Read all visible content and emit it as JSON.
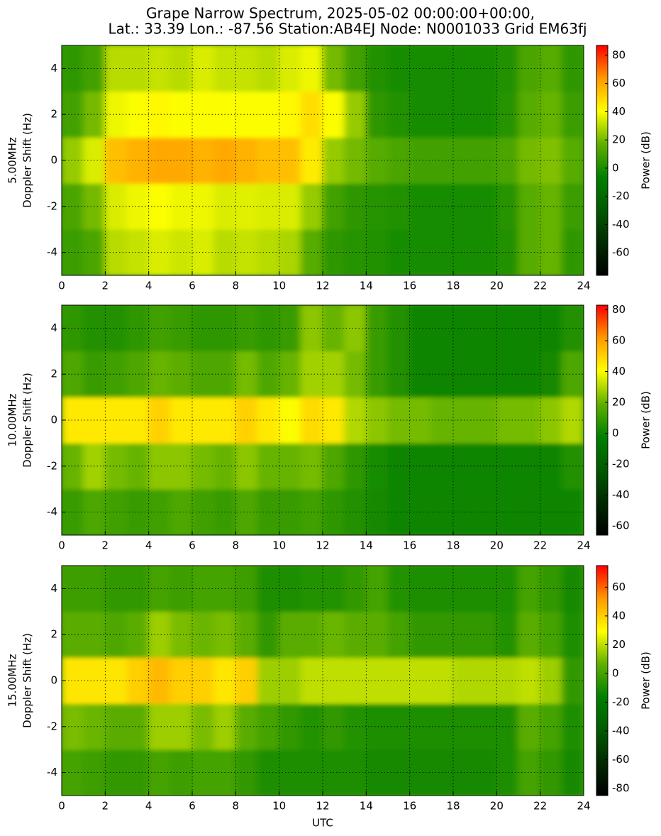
{
  "title": [
    "Grape Narrow Spectrum, 2025-05-02 00:00:00+00:00,",
    "Lat.: 33.39 Lon.: -87.56 Station:AB4EJ Node: N0001033 Grid EM63fj"
  ],
  "chart_data": [
    {
      "type": "heatmap",
      "ylabel": [
        "5.00MHz",
        "Doppler Shift (Hz)"
      ],
      "x": [
        0,
        1,
        2,
        3,
        4,
        5,
        6,
        7,
        8,
        9,
        10,
        11,
        12,
        13,
        14,
        15,
        16,
        17,
        18,
        19,
        20,
        21,
        22,
        23,
        24
      ],
      "y": [
        -5,
        -3,
        -1,
        1,
        3,
        5
      ],
      "values": [
        [
          8,
          12,
          30,
          32,
          35,
          33,
          35,
          30,
          32,
          30,
          28,
          15,
          5,
          3,
          2,
          0,
          0,
          0,
          0,
          0,
          2,
          15,
          18,
          5
        ],
        [
          12,
          20,
          35,
          38,
          40,
          38,
          38,
          35,
          36,
          35,
          35,
          25,
          10,
          5,
          3,
          2,
          0,
          0,
          0,
          0,
          3,
          15,
          18,
          8
        ],
        [
          25,
          35,
          55,
          58,
          60,
          60,
          58,
          60,
          58,
          55,
          55,
          45,
          25,
          20,
          15,
          12,
          10,
          10,
          10,
          10,
          12,
          20,
          22,
          15
        ],
        [
          10,
          20,
          38,
          40,
          42,
          40,
          40,
          40,
          40,
          40,
          42,
          48,
          40,
          25,
          5,
          2,
          0,
          0,
          0,
          0,
          3,
          15,
          18,
          8
        ],
        [
          5,
          10,
          30,
          30,
          32,
          30,
          35,
          32,
          32,
          30,
          35,
          38,
          20,
          10,
          2,
          0,
          0,
          0,
          0,
          0,
          2,
          12,
          15,
          5
        ]
      ],
      "xlim": [
        0,
        24
      ],
      "xticks": [
        0,
        2,
        4,
        6,
        8,
        10,
        12,
        14,
        16,
        18,
        20,
        22,
        24
      ],
      "ylim": [
        -5,
        5
      ],
      "yticks": [
        -4,
        -2,
        0,
        2,
        4
      ],
      "grid": true,
      "colorbar": {
        "label": "Power (dB)",
        "lim": [
          -76,
          87
        ],
        "ticks": [
          -60,
          -40,
          -20,
          0,
          20,
          40,
          60,
          80
        ]
      },
      "cmap": [
        "#000000",
        "#002a00",
        "#005a00",
        "#008000",
        "#60b000",
        "#ffff00",
        "#ff9900",
        "#ff0000"
      ]
    },
    {
      "type": "heatmap",
      "ylabel": [
        "10.00MHz",
        "Doppler Shift (Hz)"
      ],
      "x": [
        0,
        1,
        2,
        3,
        4,
        5,
        6,
        7,
        8,
        9,
        10,
        11,
        12,
        13,
        14,
        15,
        16,
        17,
        18,
        19,
        20,
        21,
        22,
        23,
        24
      ],
      "y": [
        -5,
        -3,
        -1,
        1,
        3,
        5
      ],
      "values": [
        [
          10,
          15,
          12,
          10,
          12,
          15,
          12,
          10,
          15,
          10,
          10,
          12,
          8,
          5,
          2,
          0,
          0,
          0,
          0,
          0,
          0,
          0,
          0,
          0
        ],
        [
          20,
          28,
          22,
          20,
          25,
          25,
          22,
          20,
          25,
          20,
          20,
          22,
          15,
          8,
          3,
          0,
          0,
          0,
          0,
          0,
          0,
          0,
          0,
          5
        ],
        [
          45,
          45,
          45,
          45,
          50,
          45,
          45,
          45,
          50,
          45,
          40,
          48,
          45,
          30,
          25,
          22,
          22,
          20,
          20,
          20,
          22,
          22,
          25,
          30
        ],
        [
          15,
          10,
          12,
          15,
          20,
          18,
          15,
          15,
          22,
          15,
          20,
          28,
          28,
          22,
          10,
          5,
          0,
          0,
          0,
          0,
          0,
          0,
          2,
          15
        ],
        [
          8,
          5,
          5,
          8,
          12,
          10,
          8,
          8,
          10,
          8,
          10,
          25,
          20,
          25,
          10,
          5,
          0,
          0,
          0,
          0,
          0,
          0,
          0,
          5
        ]
      ],
      "xlim": [
        0,
        24
      ],
      "xticks": [
        0,
        2,
        4,
        6,
        8,
        10,
        12,
        14,
        16,
        18,
        20,
        22,
        24
      ],
      "ylim": [
        -5,
        5
      ],
      "yticks": [
        -4,
        -2,
        0,
        2,
        4
      ],
      "grid": true,
      "colorbar": {
        "label": "Power (dB)",
        "lim": [
          -66,
          83
        ],
        "ticks": [
          -60,
          -40,
          -20,
          0,
          20,
          40,
          60,
          80
        ]
      },
      "cmap": [
        "#000000",
        "#002a00",
        "#005a00",
        "#008000",
        "#60b000",
        "#ffff00",
        "#ff9900",
        "#ff0000"
      ]
    },
    {
      "type": "heatmap",
      "ylabel": [
        "15.00MHz",
        "Doppler Shift (Hz)"
      ],
      "xlabel": "UTC",
      "x": [
        0,
        1,
        2,
        3,
        4,
        5,
        6,
        7,
        8,
        9,
        10,
        11,
        12,
        13,
        14,
        15,
        16,
        17,
        18,
        19,
        20,
        21,
        22,
        23,
        24
      ],
      "y": [
        -5,
        -3,
        -1,
        1,
        3,
        5
      ],
      "values": [
        [
          0,
          -2,
          -5,
          -5,
          0,
          -2,
          0,
          0,
          -5,
          -10,
          -10,
          -10,
          -10,
          -10,
          -12,
          -12,
          -12,
          -12,
          -12,
          -12,
          -10,
          0,
          -5,
          -12
        ],
        [
          10,
          8,
          5,
          5,
          15,
          15,
          10,
          15,
          5,
          0,
          -5,
          -8,
          -5,
          -8,
          -10,
          -10,
          -10,
          -10,
          -10,
          -10,
          -10,
          5,
          0,
          -10
        ],
        [
          35,
          35,
          35,
          40,
          45,
          40,
          40,
          35,
          40,
          15,
          15,
          20,
          20,
          20,
          20,
          20,
          20,
          20,
          18,
          18,
          18,
          20,
          15,
          -5
        ],
        [
          5,
          5,
          2,
          5,
          15,
          10,
          8,
          10,
          5,
          -5,
          5,
          5,
          8,
          5,
          5,
          0,
          -5,
          -5,
          -5,
          -5,
          -8,
          5,
          0,
          -10
        ],
        [
          -2,
          -2,
          -5,
          -5,
          0,
          -2,
          0,
          0,
          -2,
          -10,
          -10,
          -8,
          -8,
          -5,
          0,
          -8,
          -10,
          -10,
          -10,
          -10,
          -10,
          0,
          -5,
          -12
        ]
      ],
      "xlim": [
        0,
        24
      ],
      "xticks": [
        0,
        2,
        4,
        6,
        8,
        10,
        12,
        14,
        16,
        18,
        20,
        22,
        24
      ],
      "ylim": [
        -5,
        5
      ],
      "yticks": [
        -4,
        -2,
        0,
        2,
        4
      ],
      "grid": true,
      "colorbar": {
        "label": "Power (dB)",
        "lim": [
          -85,
          75
        ],
        "ticks": [
          -80,
          -60,
          -40,
          -20,
          0,
          20,
          40,
          60
        ]
      },
      "cmap": [
        "#000000",
        "#002a00",
        "#005a00",
        "#008000",
        "#60b000",
        "#ffff00",
        "#ff9900",
        "#ff0000"
      ]
    }
  ]
}
